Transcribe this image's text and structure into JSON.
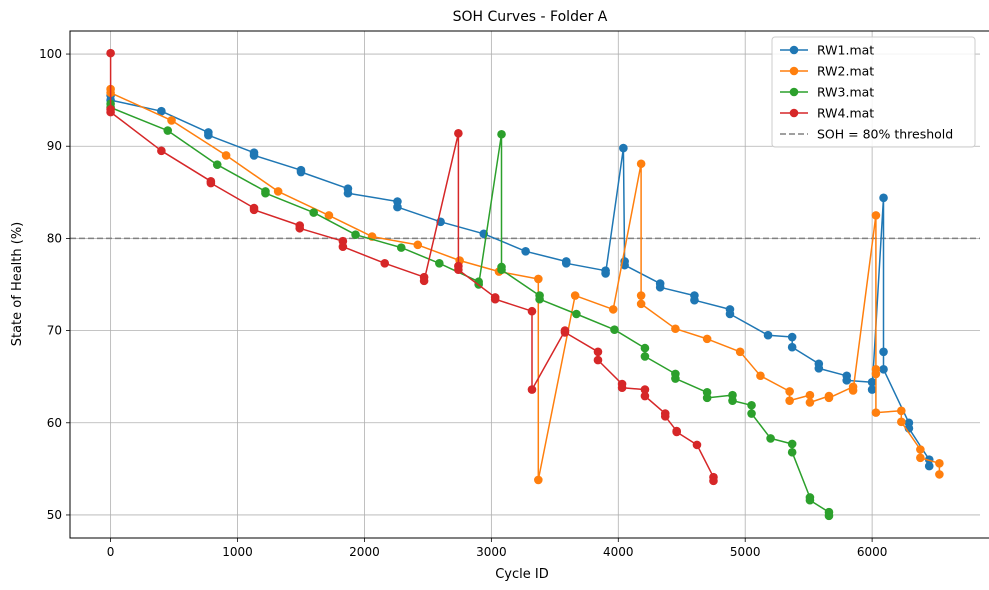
{
  "chart_data": {
    "type": "line",
    "title": "SOH Curves - Folder A",
    "xlabel": "Cycle ID",
    "ylabel": "State of Health (%)",
    "xlim": [
      -320,
      6850
    ],
    "ylim": [
      47.5,
      102.5
    ],
    "xticks": [
      0,
      1000,
      2000,
      3000,
      4000,
      5000,
      6000
    ],
    "yticks": [
      50,
      60,
      70,
      80,
      90,
      100
    ],
    "grid": true,
    "legend_position": "top-right",
    "threshold": {
      "label": "SOH = 80% threshold",
      "y": 80,
      "color": "#808080"
    },
    "series": [
      {
        "name": "RW1.mat",
        "color": "#1f77b4",
        "points": [
          [
            0,
            95.5
          ],
          [
            0,
            95.0
          ],
          [
            400,
            93.8
          ],
          [
            770,
            91.5
          ],
          [
            770,
            91.2
          ],
          [
            1130,
            89.3
          ],
          [
            1130,
            89.0
          ],
          [
            1500,
            87.4
          ],
          [
            1500,
            87.2
          ],
          [
            1870,
            85.4
          ],
          [
            1870,
            84.9
          ],
          [
            2260,
            84.0
          ],
          [
            2260,
            83.4
          ],
          [
            2600,
            81.8
          ],
          [
            2940,
            80.5
          ],
          [
            3270,
            78.6
          ],
          [
            3590,
            77.5
          ],
          [
            3590,
            77.3
          ],
          [
            3900,
            76.5
          ],
          [
            3900,
            76.2
          ],
          [
            4040,
            89.8
          ],
          [
            4050,
            77.5
          ],
          [
            4050,
            77.1
          ],
          [
            4330,
            75.1
          ],
          [
            4330,
            74.7
          ],
          [
            4600,
            73.8
          ],
          [
            4600,
            73.3
          ],
          [
            4880,
            72.3
          ],
          [
            4880,
            71.8
          ],
          [
            5180,
            69.5
          ],
          [
            5370,
            69.3
          ],
          [
            5370,
            68.2
          ],
          [
            5580,
            66.4
          ],
          [
            5580,
            65.9
          ],
          [
            5800,
            65.1
          ],
          [
            5800,
            64.6
          ],
          [
            6000,
            64.4
          ],
          [
            6000,
            63.6
          ],
          [
            6090,
            84.4
          ],
          [
            6090,
            67.7
          ],
          [
            6090,
            65.8
          ],
          [
            6290,
            60.0
          ],
          [
            6290,
            59.4
          ],
          [
            6450,
            56.0
          ],
          [
            6450,
            55.3
          ]
        ]
      },
      {
        "name": "RW2.mat",
        "color": "#ff7f0e",
        "points": [
          [
            0,
            96.2
          ],
          [
            0,
            95.8
          ],
          [
            480,
            92.8
          ],
          [
            910,
            89.0
          ],
          [
            1320,
            85.1
          ],
          [
            1720,
            82.5
          ],
          [
            2060,
            80.2
          ],
          [
            2420,
            79.3
          ],
          [
            2750,
            77.6
          ],
          [
            3060,
            76.4
          ],
          [
            3370,
            75.6
          ],
          [
            3370,
            53.8
          ],
          [
            3660,
            73.8
          ],
          [
            3960,
            72.3
          ],
          [
            4180,
            88.1
          ],
          [
            4180,
            73.8
          ],
          [
            4180,
            72.9
          ],
          [
            4450,
            70.2
          ],
          [
            4700,
            69.1
          ],
          [
            4960,
            67.7
          ],
          [
            5120,
            65.1
          ],
          [
            5350,
            63.4
          ],
          [
            5350,
            62.4
          ],
          [
            5510,
            63.0
          ],
          [
            5510,
            62.2
          ],
          [
            5660,
            62.9
          ],
          [
            5660,
            62.7
          ],
          [
            5850,
            63.9
          ],
          [
            5850,
            63.5
          ],
          [
            6030,
            82.5
          ],
          [
            6030,
            65.8
          ],
          [
            6030,
            65.3
          ],
          [
            6030,
            61.1
          ],
          [
            6230,
            61.3
          ],
          [
            6230,
            60.1
          ],
          [
            6380,
            57.1
          ],
          [
            6380,
            56.2
          ],
          [
            6530,
            55.6
          ],
          [
            6530,
            54.4
          ]
        ]
      },
      {
        "name": "RW3.mat",
        "color": "#2ca02c",
        "points": [
          [
            0,
            94.6
          ],
          [
            0,
            94.2
          ],
          [
            450,
            91.7
          ],
          [
            840,
            88.0
          ],
          [
            1220,
            85.1
          ],
          [
            1220,
            84.9
          ],
          [
            1600,
            82.8
          ],
          [
            1930,
            80.4
          ],
          [
            2290,
            79.0
          ],
          [
            2590,
            77.3
          ],
          [
            2900,
            75.3
          ],
          [
            2900,
            75.0
          ],
          [
            3080,
            91.3
          ],
          [
            3080,
            76.9
          ],
          [
            3080,
            76.6
          ],
          [
            3380,
            73.8
          ],
          [
            3380,
            73.4
          ],
          [
            3670,
            71.8
          ],
          [
            3970,
            70.1
          ],
          [
            4210,
            68.1
          ],
          [
            4210,
            67.2
          ],
          [
            4450,
            65.3
          ],
          [
            4450,
            64.8
          ],
          [
            4700,
            63.3
          ],
          [
            4700,
            62.7
          ],
          [
            4900,
            63.0
          ],
          [
            4900,
            62.4
          ],
          [
            5050,
            61.9
          ],
          [
            5050,
            61.0
          ],
          [
            5200,
            58.3
          ],
          [
            5370,
            57.7
          ],
          [
            5370,
            56.8
          ],
          [
            5510,
            51.9
          ],
          [
            5510,
            51.6
          ],
          [
            5660,
            50.3
          ],
          [
            5660,
            49.9
          ]
        ]
      },
      {
        "name": "RW4.mat",
        "color": "#d62728",
        "points": [
          [
            0,
            100.1
          ],
          [
            0,
            94.0
          ],
          [
            0,
            93.7
          ],
          [
            400,
            89.5
          ],
          [
            790,
            86.2
          ],
          [
            790,
            86.0
          ],
          [
            1130,
            83.3
          ],
          [
            1130,
            83.1
          ],
          [
            1490,
            81.4
          ],
          [
            1490,
            81.1
          ],
          [
            1830,
            79.7
          ],
          [
            1830,
            79.1
          ],
          [
            2160,
            77.3
          ],
          [
            2470,
            75.8
          ],
          [
            2470,
            75.4
          ],
          [
            2740,
            91.4
          ],
          [
            2740,
            77.0
          ],
          [
            2740,
            76.6
          ],
          [
            3030,
            73.6
          ],
          [
            3030,
            73.4
          ],
          [
            3320,
            72.1
          ],
          [
            3320,
            63.6
          ],
          [
            3580,
            70.0
          ],
          [
            3580,
            69.8
          ],
          [
            3840,
            67.7
          ],
          [
            3840,
            66.8
          ],
          [
            4030,
            64.2
          ],
          [
            4030,
            63.8
          ],
          [
            4210,
            63.6
          ],
          [
            4210,
            62.9
          ],
          [
            4370,
            61.0
          ],
          [
            4370,
            60.7
          ],
          [
            4460,
            59.1
          ],
          [
            4460,
            59.0
          ],
          [
            4620,
            57.6
          ],
          [
            4750,
            54.1
          ],
          [
            4750,
            53.7
          ]
        ]
      }
    ]
  }
}
